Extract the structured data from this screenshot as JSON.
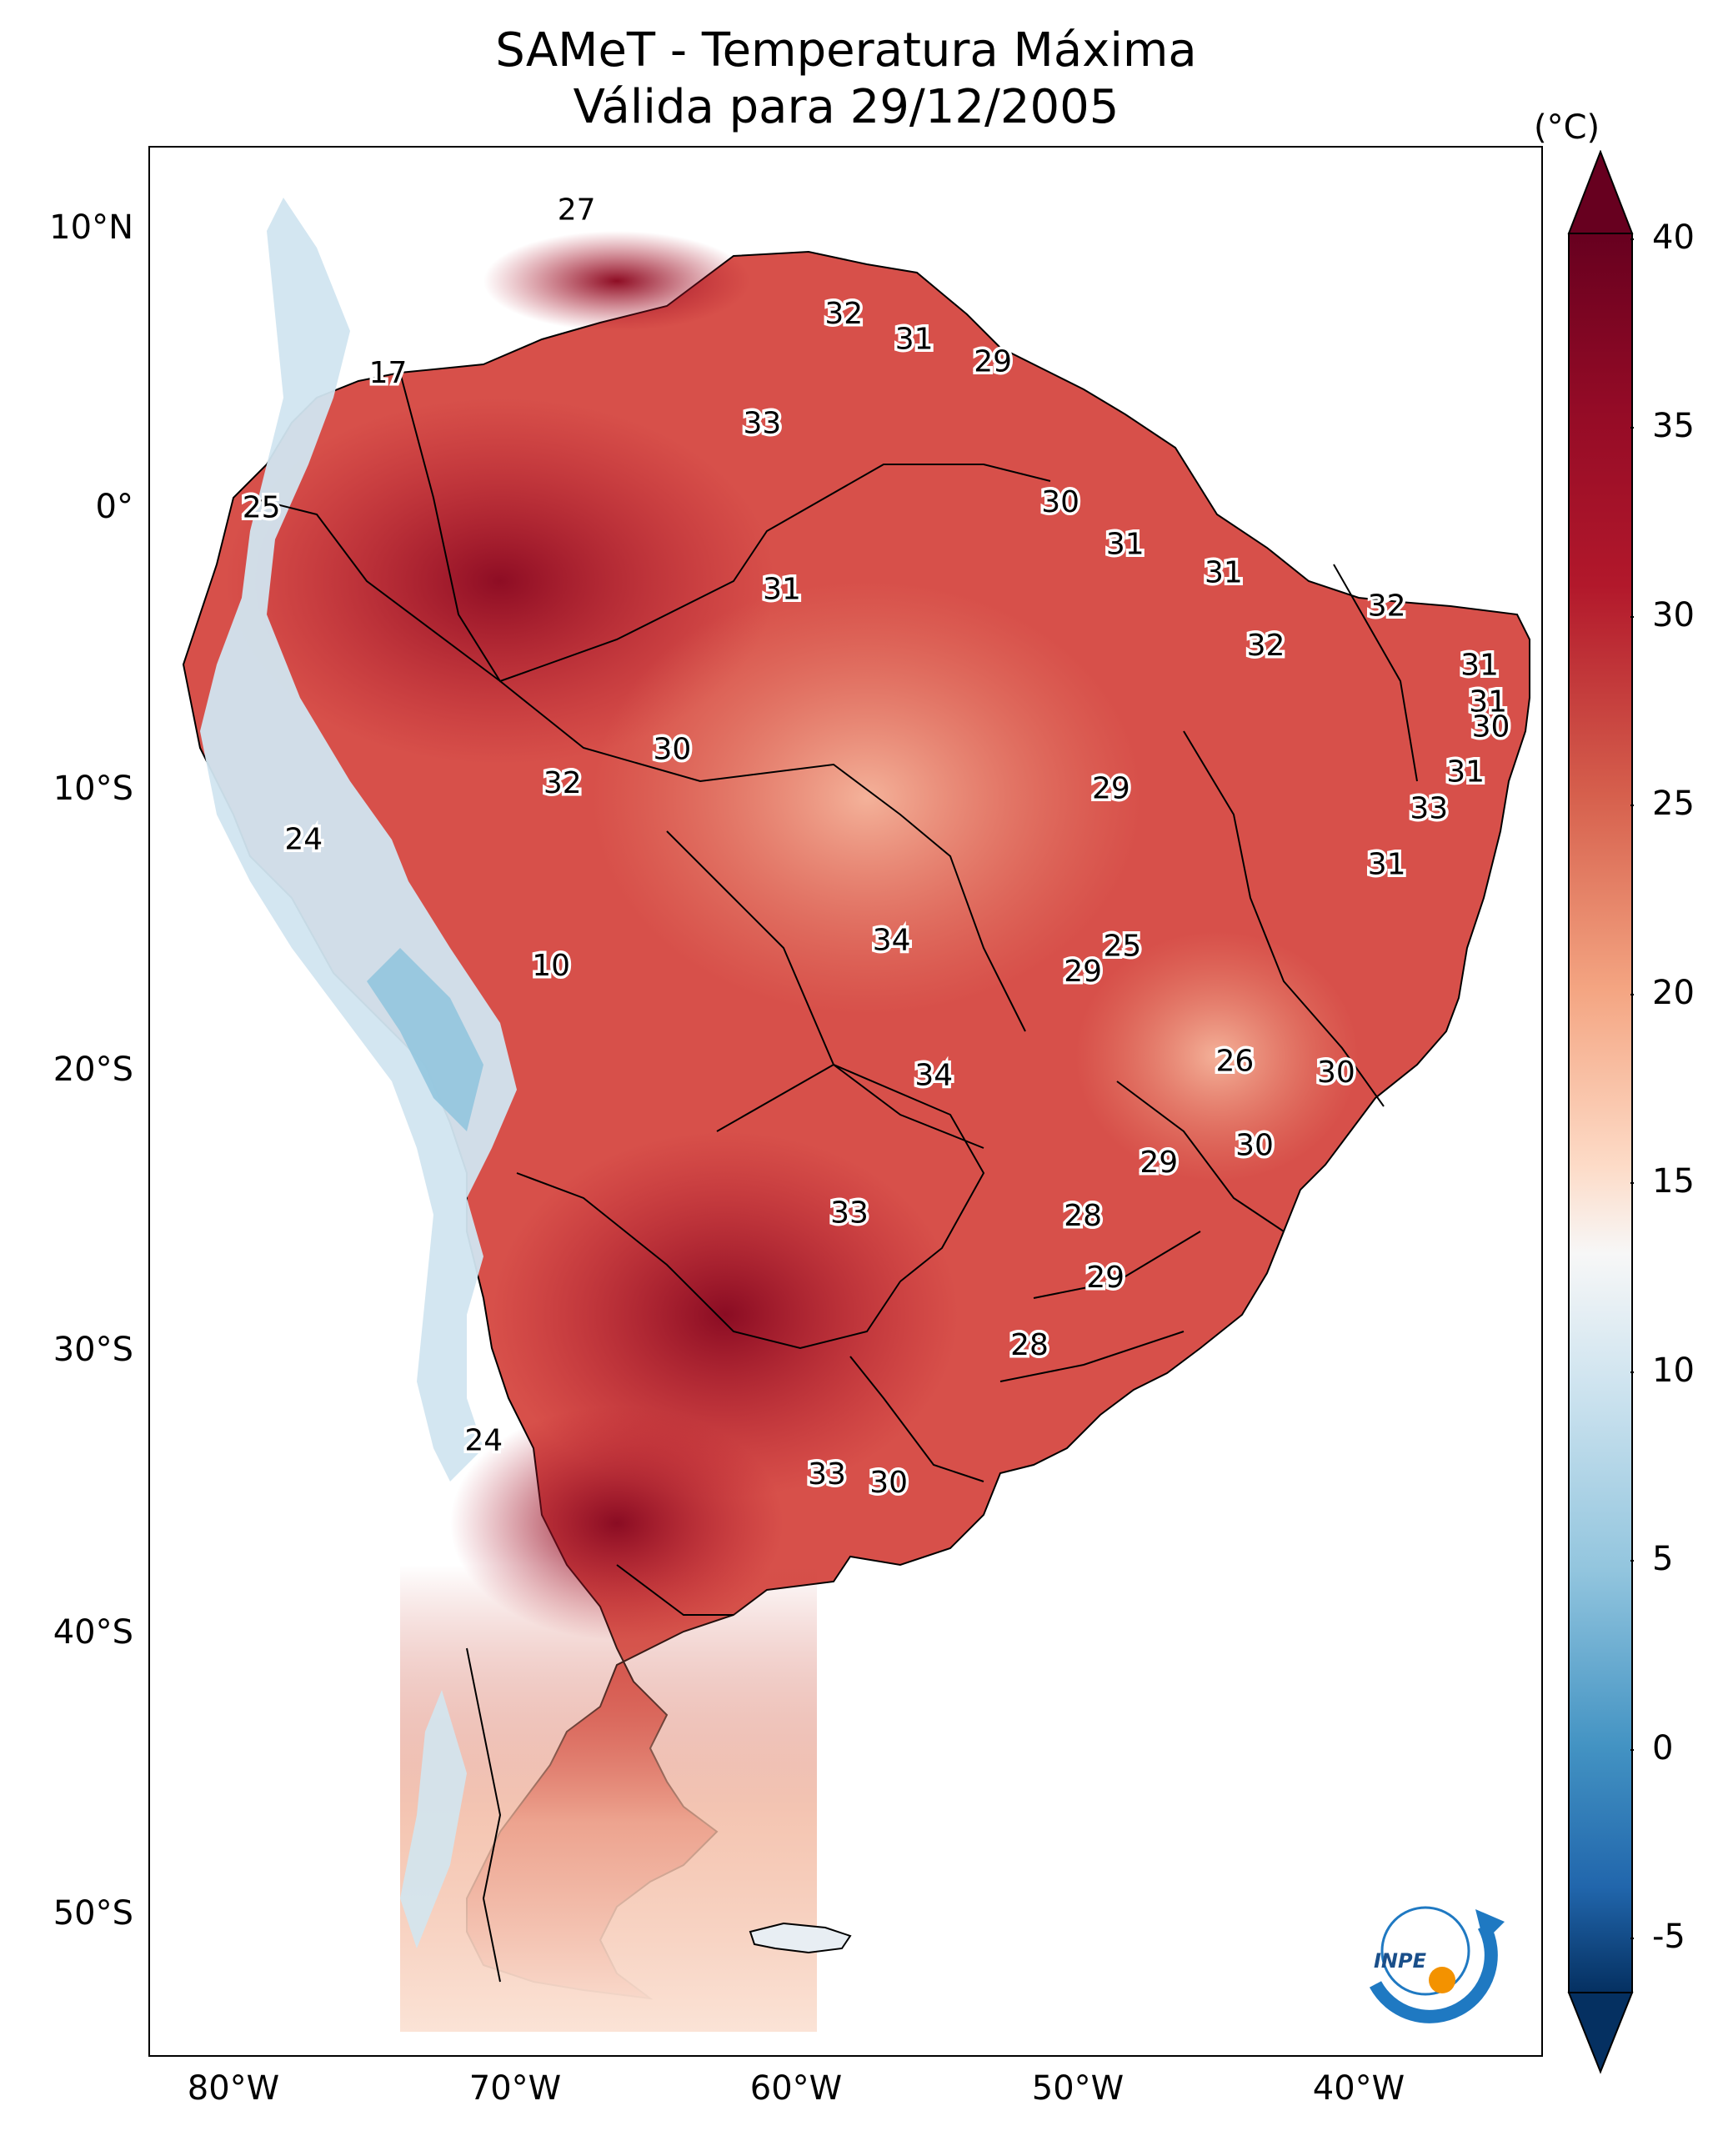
{
  "title": "SAMeT - Temperatura Máxima",
  "subtitle": "Válida para 29/12/2005",
  "axes": {
    "lon_ticks": [
      "80°W",
      "70°W",
      "60°W",
      "50°W",
      "40°W"
    ],
    "lat_ticks": [
      "10°N",
      "0°",
      "10°S",
      "20°S",
      "30°S",
      "40°S",
      "50°S"
    ]
  },
  "colorbar": {
    "unit": "(°C)",
    "ticks": [
      "40",
      "35",
      "30",
      "25",
      "20",
      "15",
      "10",
      "5",
      "0",
      "-5"
    ],
    "min": -5,
    "max": 40,
    "colors": {
      "cold": "#053061",
      "cool": "#4393c3",
      "neutral": "#f7f7f7",
      "warm": "#d6604d",
      "hot": "#67001f"
    }
  },
  "station_labels": [
    {
      "id": "s1",
      "value": "27",
      "lon": -67.3,
      "lat": 10.4
    },
    {
      "id": "s2",
      "value": "32",
      "lon": -57.8,
      "lat": 6.7
    },
    {
      "id": "s3",
      "value": "31",
      "lon": -55.3,
      "lat": 5.8
    },
    {
      "id": "s4",
      "value": "29",
      "lon": -52.5,
      "lat": 5.0
    },
    {
      "id": "s5",
      "value": "17",
      "lon": -74.0,
      "lat": 4.6
    },
    {
      "id": "s6",
      "value": "33",
      "lon": -60.7,
      "lat": 2.8
    },
    {
      "id": "s7",
      "value": "25",
      "lon": -78.5,
      "lat": -0.2
    },
    {
      "id": "s8",
      "value": "30",
      "lon": -50.1,
      "lat": 0.0
    },
    {
      "id": "s9",
      "value": "31",
      "lon": -47.8,
      "lat": -1.5
    },
    {
      "id": "s10",
      "value": "31",
      "lon": -44.3,
      "lat": -2.5
    },
    {
      "id": "s11",
      "value": "31",
      "lon": -60.0,
      "lat": -3.1
    },
    {
      "id": "s12",
      "value": "32",
      "lon": -38.5,
      "lat": -3.7
    },
    {
      "id": "s13",
      "value": "32",
      "lon": -42.8,
      "lat": -5.1
    },
    {
      "id": "s14",
      "value": "31",
      "lon": -35.2,
      "lat": -5.8
    },
    {
      "id": "s15",
      "value": "31",
      "lon": -34.9,
      "lat": -7.1
    },
    {
      "id": "s16",
      "value": "30",
      "lon": -34.8,
      "lat": -8.0
    },
    {
      "id": "s17",
      "value": "30",
      "lon": -63.9,
      "lat": -8.8
    },
    {
      "id": "s18",
      "value": "32",
      "lon": -67.8,
      "lat": -10.0
    },
    {
      "id": "s19",
      "value": "31",
      "lon": -35.7,
      "lat": -9.6
    },
    {
      "id": "s20",
      "value": "29",
      "lon": -48.3,
      "lat": -10.2
    },
    {
      "id": "s21",
      "value": "33",
      "lon": -37.0,
      "lat": -10.9
    },
    {
      "id": "s22",
      "value": "24",
      "lon": -77.0,
      "lat": -12.0
    },
    {
      "id": "s23",
      "value": "31",
      "lon": -38.5,
      "lat": -12.9
    },
    {
      "id": "s24",
      "value": "34",
      "lon": -56.1,
      "lat": -15.6
    },
    {
      "id": "s25",
      "value": "25",
      "lon": -47.9,
      "lat": -15.8
    },
    {
      "id": "s26",
      "value": "10",
      "lon": -68.2,
      "lat": -16.5
    },
    {
      "id": "s27",
      "value": "29",
      "lon": -49.3,
      "lat": -16.7
    },
    {
      "id": "s28",
      "value": "26",
      "lon": -43.9,
      "lat": -19.9
    },
    {
      "id": "s29",
      "value": "30",
      "lon": -40.3,
      "lat": -20.3
    },
    {
      "id": "s30",
      "value": "34",
      "lon": -54.6,
      "lat": -20.4
    },
    {
      "id": "s31",
      "value": "30",
      "lon": -43.2,
      "lat": -22.9
    },
    {
      "id": "s32",
      "value": "29",
      "lon": -46.6,
      "lat": -23.5
    },
    {
      "id": "s33",
      "value": "33",
      "lon": -57.6,
      "lat": -25.3
    },
    {
      "id": "s34",
      "value": "28",
      "lon": -49.3,
      "lat": -25.4
    },
    {
      "id": "s35",
      "value": "29",
      "lon": -48.5,
      "lat": -27.6
    },
    {
      "id": "s36",
      "value": "28",
      "lon": -51.2,
      "lat": -30.0
    },
    {
      "id": "s37",
      "value": "24",
      "lon": -70.6,
      "lat": -33.4
    },
    {
      "id": "s38",
      "value": "33",
      "lon": -58.4,
      "lat": -34.6
    },
    {
      "id": "s39",
      "value": "30",
      "lon": -56.2,
      "lat": -34.9
    }
  ],
  "logo": {
    "text": "INPE"
  }
}
